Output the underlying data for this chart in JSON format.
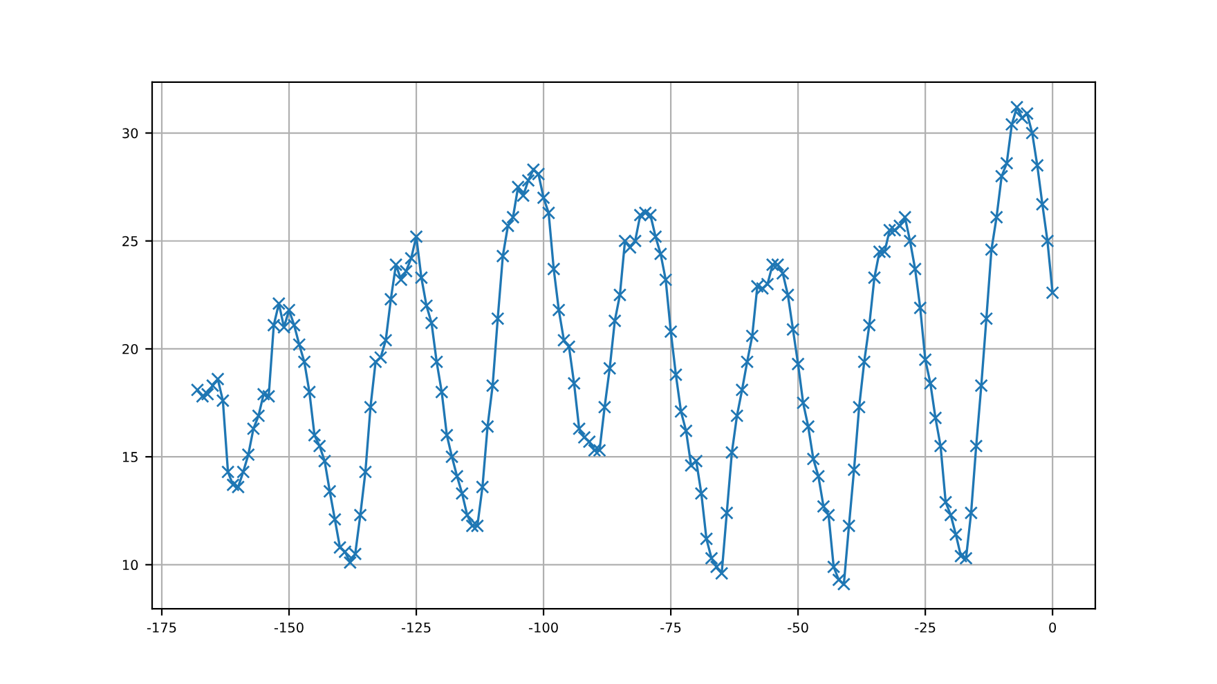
{
  "chart_data": {
    "type": "line",
    "marker": "cross",
    "line_style": "solid",
    "grid": true,
    "xlim": [
      -176.9,
      8.4
    ],
    "ylim": [
      7.96,
      32.36
    ],
    "xticks": [
      -175,
      -150,
      -125,
      -100,
      -75,
      -50,
      -25,
      0
    ],
    "yticks": [
      10,
      15,
      20,
      25,
      30
    ],
    "x": [
      -168,
      -167,
      -166,
      -165,
      -164,
      -163,
      -162,
      -161,
      -160,
      -159,
      -158,
      -157,
      -156,
      -155,
      -154,
      -153,
      -152,
      -151,
      -150,
      -149,
      -148,
      -147,
      -146,
      -145,
      -144,
      -143,
      -142,
      -141,
      -140,
      -139,
      -138,
      -137,
      -136,
      -135,
      -134,
      -133,
      -132,
      -131,
      -130,
      -129,
      -128,
      -127,
      -126,
      -125,
      -124,
      -123,
      -122,
      -121,
      -120,
      -119,
      -118,
      -117,
      -116,
      -115,
      -114,
      -113,
      -112,
      -111,
      -110,
      -109,
      -108,
      -107,
      -106,
      -105,
      -104,
      -103,
      -102,
      -101,
      -100,
      -99,
      -98,
      -97,
      -96,
      -95,
      -94,
      -93,
      -92,
      -91,
      -90,
      -89,
      -88,
      -87,
      -86,
      -85,
      -84,
      -83,
      -82,
      -81,
      -80,
      -79,
      -78,
      -77,
      -76,
      -75,
      -74,
      -73,
      -72,
      -71,
      -70,
      -69,
      -68,
      -67,
      -66,
      -65,
      -64,
      -63,
      -62,
      -61,
      -60,
      -59,
      -58,
      -57,
      -56,
      -55,
      -54,
      -53,
      -52,
      -51,
      -50,
      -49,
      -48,
      -47,
      -46,
      -45,
      -44,
      -43,
      -42,
      -41,
      -40,
      -39,
      -38,
      -37,
      -36,
      -35,
      -34,
      -33,
      -32,
      -31,
      -30,
      -29,
      -28,
      -27,
      -26,
      -25,
      -24,
      -23,
      -22,
      -21,
      -20,
      -19,
      -18,
      -17,
      -16,
      -15,
      -14,
      -13,
      -12,
      -11,
      -10,
      -9,
      -8,
      -7,
      -6,
      -5,
      -4,
      -3,
      -2,
      -1,
      0
    ],
    "series": [
      {
        "color": "#1f77b4",
        "values": [
          18.1,
          17.8,
          17.9,
          18.3,
          18.6,
          17.6,
          14.3,
          13.7,
          13.6,
          14.3,
          15.1,
          16.3,
          16.9,
          17.9,
          17.8,
          21.1,
          22.1,
          21.0,
          21.8,
          21.1,
          20.2,
          19.4,
          18.0,
          16.0,
          15.5,
          14.8,
          13.4,
          12.1,
          10.8,
          10.6,
          10.1,
          10.5,
          12.3,
          14.3,
          17.3,
          19.4,
          19.6,
          20.4,
          22.3,
          23.9,
          23.2,
          23.6,
          24.2,
          25.2,
          23.3,
          22.0,
          21.2,
          19.4,
          18.0,
          16.0,
          15.0,
          14.1,
          13.3,
          12.3,
          11.8,
          11.8,
          13.6,
          16.4,
          18.3,
          21.4,
          24.3,
          25.7,
          26.1,
          27.5,
          27.1,
          27.8,
          28.3,
          28.1,
          27.0,
          26.3,
          23.7,
          21.8,
          20.4,
          20.1,
          18.4,
          16.3,
          15.9,
          15.7,
          15.3,
          15.3,
          17.3,
          19.1,
          21.3,
          22.5,
          25.0,
          24.7,
          25.0,
          26.2,
          26.3,
          26.2,
          25.2,
          24.4,
          23.2,
          20.8,
          18.8,
          17.1,
          16.2,
          14.6,
          14.8,
          13.3,
          11.2,
          10.3,
          9.9,
          9.6,
          12.4,
          15.2,
          16.9,
          18.1,
          19.4,
          20.6,
          22.9,
          22.8,
          23.0,
          23.9,
          23.9,
          23.5,
          22.5,
          20.9,
          19.3,
          17.5,
          16.4,
          14.9,
          14.1,
          12.7,
          12.3,
          9.9,
          9.3,
          9.1,
          11.8,
          14.4,
          17.3,
          19.4,
          21.1,
          23.3,
          24.5,
          24.5,
          25.5,
          25.5,
          25.7,
          26.1,
          25.0,
          23.7,
          21.9,
          19.5,
          18.4,
          16.8,
          15.5,
          12.9,
          12.3,
          11.4,
          10.4,
          10.3,
          12.4,
          15.5,
          18.3,
          21.4,
          24.6,
          26.1,
          28.0,
          28.6,
          30.4,
          31.2,
          30.7,
          30.9,
          30.0,
          28.5,
          26.7,
          25.0,
          22.6
        ]
      }
    ]
  }
}
